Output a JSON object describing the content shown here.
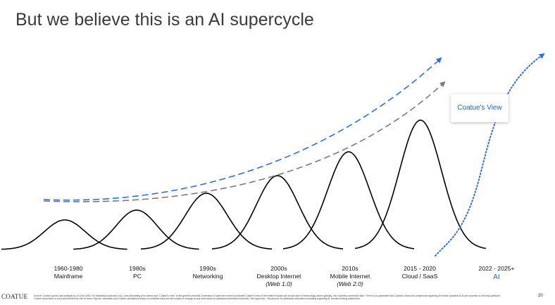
{
  "title": "But we believe this is an AI supercycle",
  "colors": {
    "accent_blue": "#2f6fd8",
    "ai_label_blue": "#1f5fd1",
    "trend_gray": "#7a7a7a",
    "curve_black": "#000000"
  },
  "callout": {
    "text": "Coatue's View"
  },
  "eras": [
    {
      "period": "1960-1980",
      "label": "Mainframe"
    },
    {
      "period": "1980s",
      "label": "PC"
    },
    {
      "period": "1990s",
      "label": "Networking"
    },
    {
      "period": "2000s",
      "label": "Desktop Internet",
      "sub": "(Web 1.0)"
    },
    {
      "period": "2010s",
      "label": "Mobile Internet",
      "sub": "(Web 2.0)"
    },
    {
      "period": "2015 - 2020",
      "label": "Cloud / SaaS"
    },
    {
      "period": "2022 - 2025+",
      "label": "AI"
    }
  ],
  "footer": {
    "brand": "COATUE",
    "disclaimer": "Source: Coatue opinion and analysis as of June 2025. For illustrative purposes only. Lines illustrating prior waves and \"Coatue's View\" of the generic potential Generative AI wave are meant to indicate Coatue's view of the relative impact and broad reach of technology waves globally, not a specific numerical value. There is no guarantee that Coatue's views and projections regarding the future potential of AI are accurate or that any particular Coatue investment or fund will benefit from the AI trend. Figures, estimates and Coatue calculations based on available data and are subject to change at any time based on additional information received. See Appendix - Disclosures for additional information including regarding AI, forward looking statements.",
    "page_number": "20"
  }
}
